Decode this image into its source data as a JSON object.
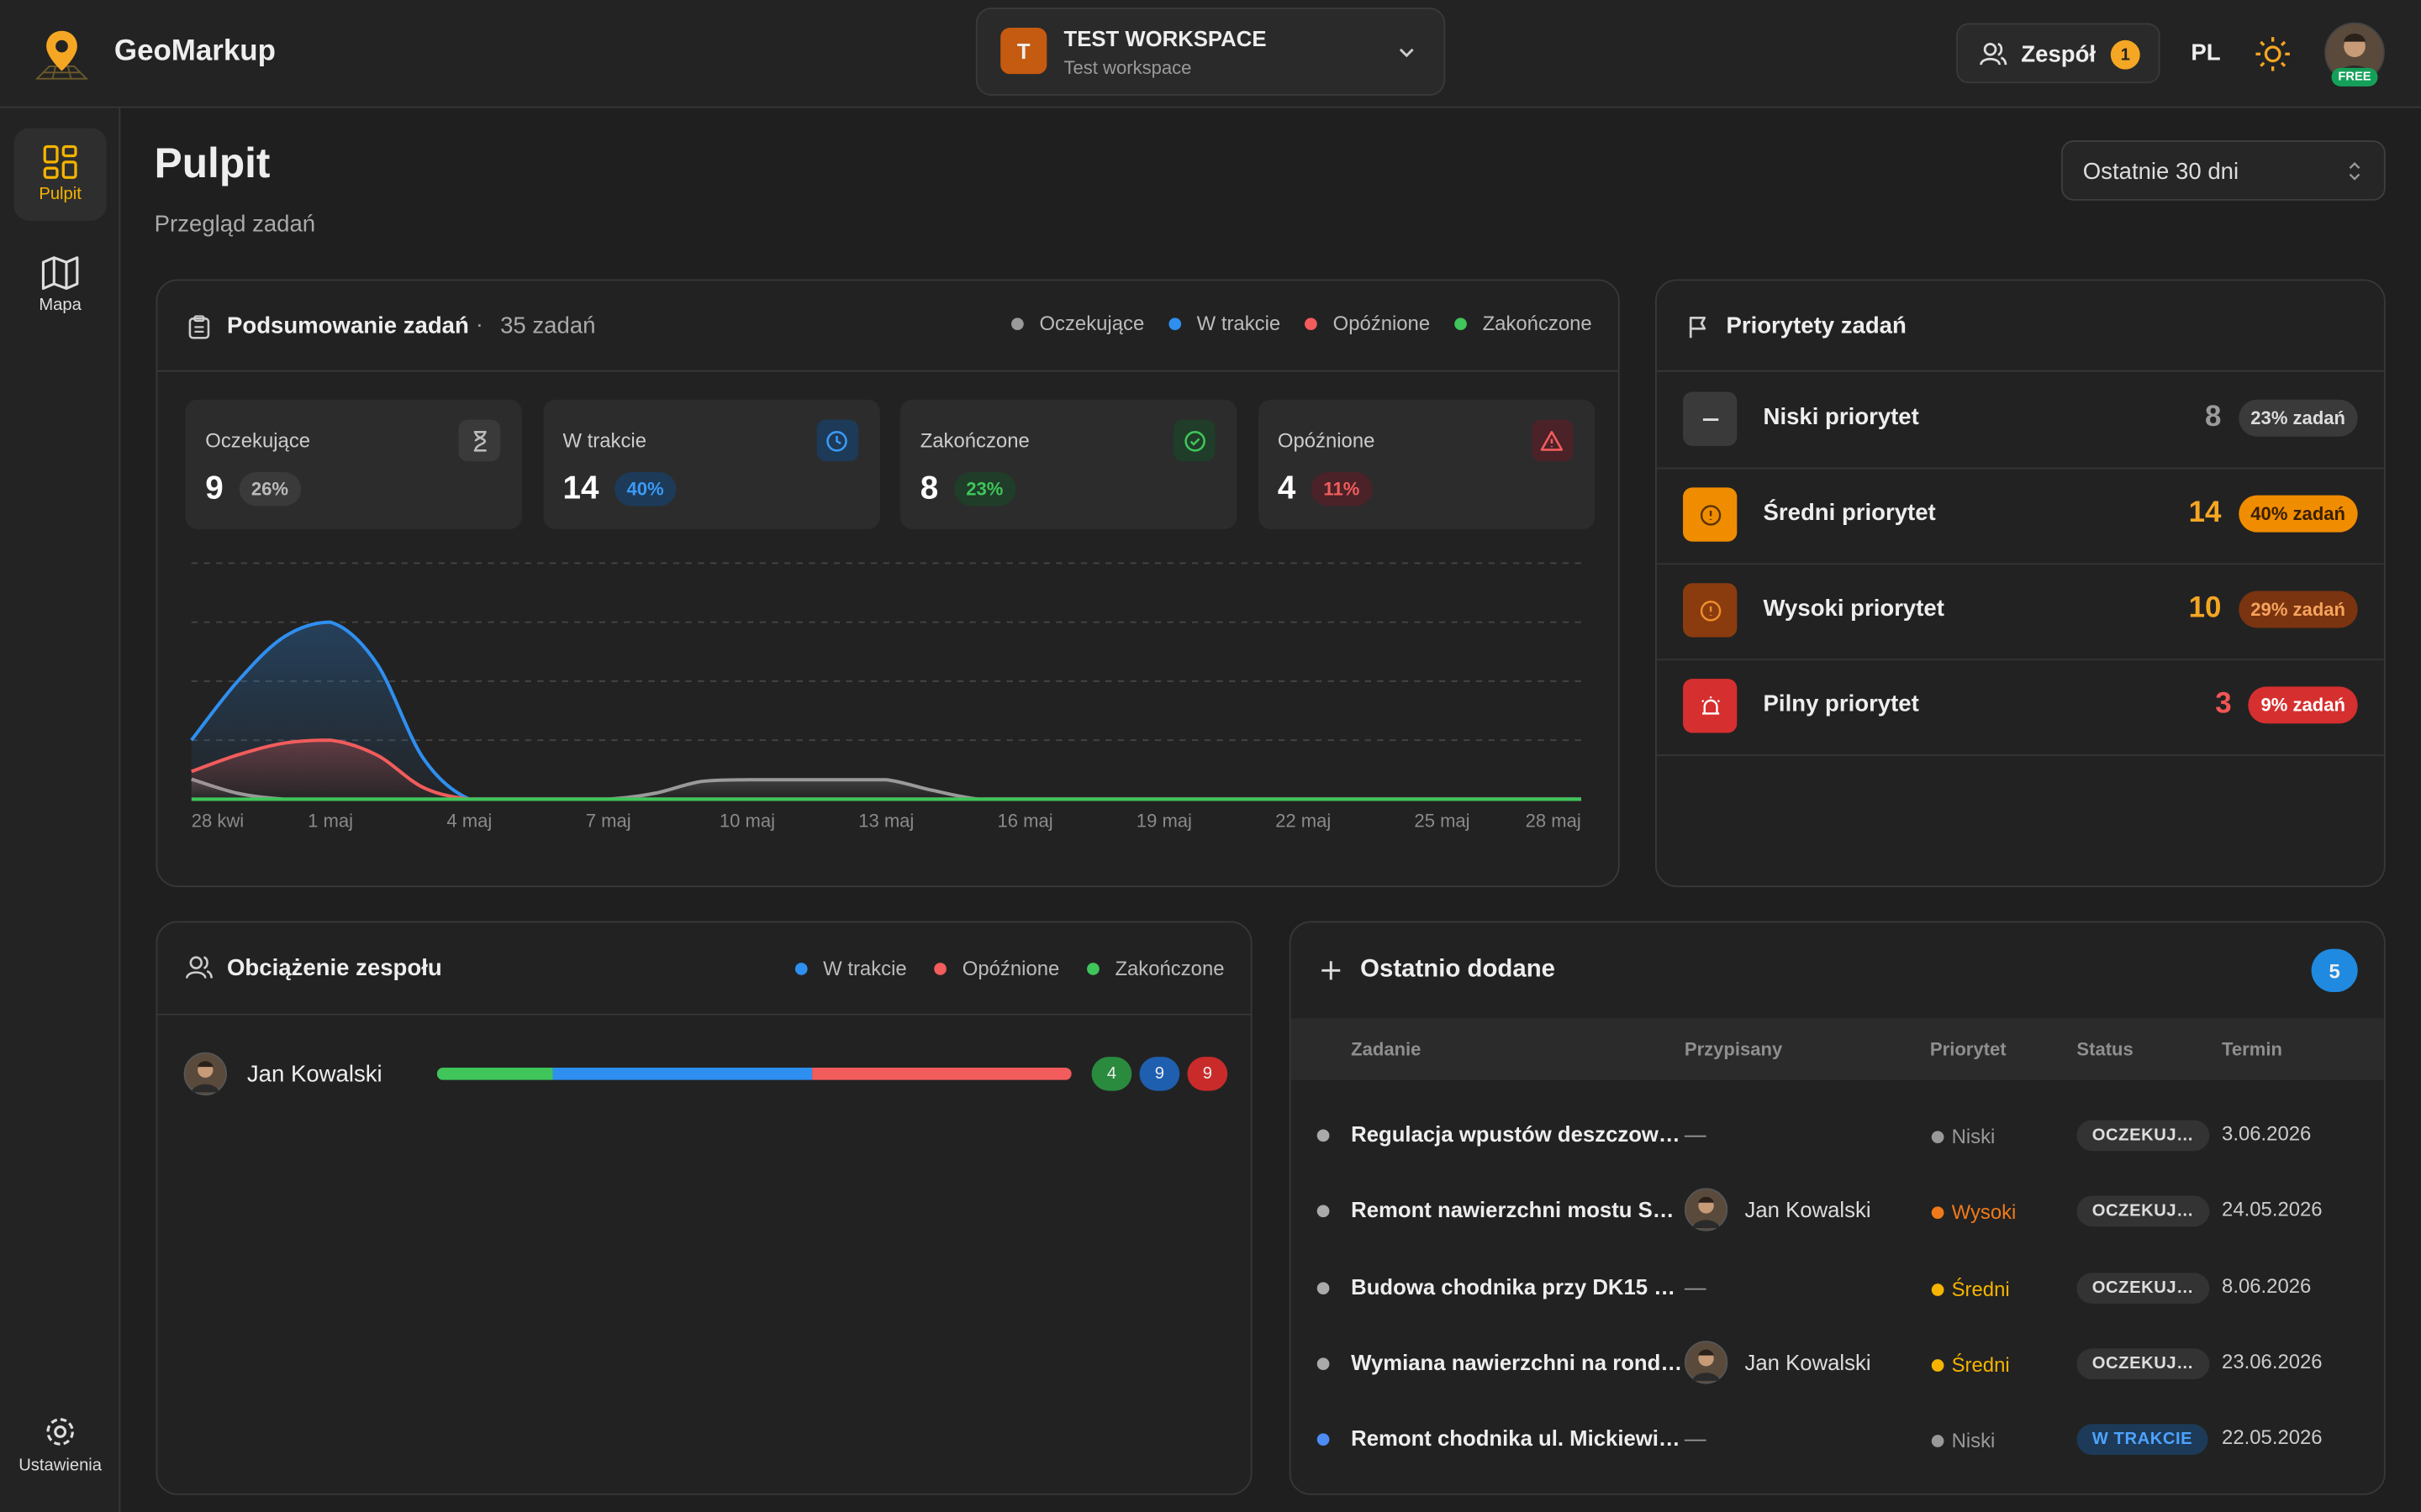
{
  "header": {
    "brand": "GeoMarkup",
    "workspace_initial": "T",
    "workspace_name": "TEST WORKSPACE",
    "workspace_sub": "Test workspace",
    "team": "Zespół",
    "team_count": "1",
    "lang": "PL",
    "plan": "FREE"
  },
  "sidebar": {
    "items": [
      "Pulpit",
      "Mapa"
    ],
    "settings": "Ustawienia"
  },
  "page": {
    "title": "Pulpit",
    "subtitle": "Przegląd zadań",
    "range": "Ostatnie 30 dni"
  },
  "summary": {
    "cards": [
      {
        "label": "Oczekujące",
        "value": "9",
        "pct": "26%"
      },
      {
        "label": "W trakcie",
        "value": "14",
        "pct": "40%"
      },
      {
        "label": "Zakończone",
        "value": "8",
        "pct": "23%"
      },
      {
        "label": "Opóźnione",
        "value": "4",
        "pct": "11%"
      }
    ]
  },
  "chart_data": {
    "type": "line",
    "title": "Podsumowanie zadań",
    "subtitle": "35 zadań",
    "grid": true,
    "ylim": [
      0,
      4
    ],
    "yticks": [
      1,
      2,
      3,
      4
    ],
    "categories": [
      "28 kwi",
      null,
      null,
      "1 maj",
      null,
      null,
      "4 maj",
      null,
      null,
      "7 maj",
      null,
      null,
      "10 maj",
      null,
      null,
      "13 maj",
      null,
      null,
      "16 maj",
      null,
      null,
      "19 maj",
      null,
      null,
      "22 maj",
      null,
      null,
      "25 maj",
      null,
      null,
      "28 maj"
    ],
    "series": [
      {
        "name": "Oczekujące",
        "color": "#9a9a9a",
        "values": [
          0.34,
          0.1,
          0,
          0,
          0,
          0,
          0,
          0,
          0,
          0,
          0.1,
          0.3,
          0.33,
          0.33,
          0.33,
          0.33,
          0.15,
          0,
          0,
          0,
          0,
          0,
          0,
          0,
          0,
          0,
          0,
          0,
          0,
          0,
          0
        ]
      },
      {
        "name": "W trakcie",
        "color": "#2f8ff0",
        "values": [
          1,
          2,
          2.75,
          3,
          2.3,
          0.7,
          0,
          0,
          0,
          0,
          0,
          0,
          0,
          0,
          0,
          0,
          0,
          0,
          0,
          0,
          0,
          0,
          0,
          0,
          0,
          0,
          0,
          0,
          0,
          0,
          0
        ]
      },
      {
        "name": "Opóźnione",
        "color": "#f25c5c",
        "values": [
          0.47,
          0.75,
          0.95,
          1,
          0.75,
          0.2,
          0,
          0,
          0,
          0,
          0,
          0,
          0,
          0,
          0,
          0,
          0,
          0,
          0,
          0,
          0,
          0,
          0,
          0,
          0,
          0,
          0,
          0,
          0,
          0,
          0
        ]
      },
      {
        "name": "Zakończone",
        "color": "#3fc55a",
        "values": [
          0,
          0,
          0,
          0,
          0,
          0,
          0,
          0,
          0,
          0,
          0,
          0,
          0,
          0,
          0,
          0,
          0,
          0,
          0,
          0,
          0,
          0,
          0,
          0,
          0,
          0,
          0,
          0,
          0,
          0,
          0
        ]
      }
    ]
  },
  "priorities": {
    "title": "Priorytety zadań",
    "rows": [
      {
        "label": "Niski priorytet",
        "count": "8",
        "pct": "23% zadań"
      },
      {
        "label": "Średni priorytet",
        "count": "14",
        "pct": "40% zadań"
      },
      {
        "label": "Wysoki priorytet",
        "count": "10",
        "pct": "29% zadań"
      },
      {
        "label": "Pilny priorytet",
        "count": "3",
        "pct": "9% zadań"
      }
    ]
  },
  "workload": {
    "title": "Obciążenie zespołu",
    "legend": [
      "W trakcie",
      "Opóźnione",
      "Zakończone"
    ],
    "members": [
      {
        "name": "Jan Kowalski",
        "segments": [
          {
            "value": 4,
            "color": "#3fc55a"
          },
          {
            "value": 9,
            "color": "#2f8ff0"
          },
          {
            "value": 9,
            "color": "#f25c5c"
          }
        ]
      }
    ]
  },
  "recent": {
    "title": "Ostatnio dodane",
    "count": "5",
    "columns": [
      "Zadanie",
      "Przypisany",
      "Priorytet",
      "Status",
      "Termin"
    ],
    "rows": [
      [
        "Regulacja wpustów deszczow…",
        "—",
        "Niski",
        "OCZEKUJ…",
        "3.06.2026"
      ],
      [
        "Remont nawierzchni mostu S…",
        "Jan Kowalski",
        "Wysoki",
        "OCZEKUJ…",
        "24.05.2026"
      ],
      [
        "Budowa chodnika przy DK15 …",
        "—",
        "Średni",
        "OCZEKUJ…",
        "8.06.2026"
      ],
      [
        "Wymiana nawierzchni na rond…",
        "Jan Kowalski",
        "Średni",
        "OCZEKUJ…",
        "23.06.2026"
      ],
      [
        "Remont chodnika ul. Mickiewi…",
        "—",
        "Niski",
        "W TRAKCIE",
        "22.05.2026"
      ]
    ]
  }
}
